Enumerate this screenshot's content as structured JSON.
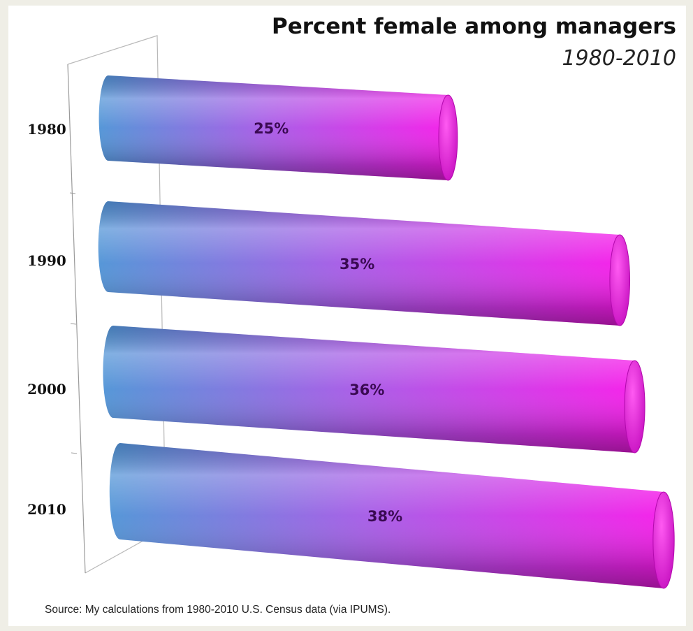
{
  "chart_data": {
    "type": "bar",
    "orientation": "horizontal",
    "title": "Percent female among managers",
    "subtitle": "1980-2010",
    "categories": [
      "1980",
      "1990",
      "2000",
      "2010"
    ],
    "values": [
      25,
      35,
      36,
      38
    ],
    "value_labels": [
      "25%",
      "35%",
      "36%",
      "38%"
    ],
    "unit": "%",
    "xlabel": "",
    "ylabel": "",
    "style": "3d-cylinder",
    "gradient": [
      "#4f93d6",
      "#f719e9"
    ],
    "grid": false,
    "legend": "none"
  },
  "source_note": "Source: My calculations from 1980-2010 U.S. Census data (via IPUMS)."
}
